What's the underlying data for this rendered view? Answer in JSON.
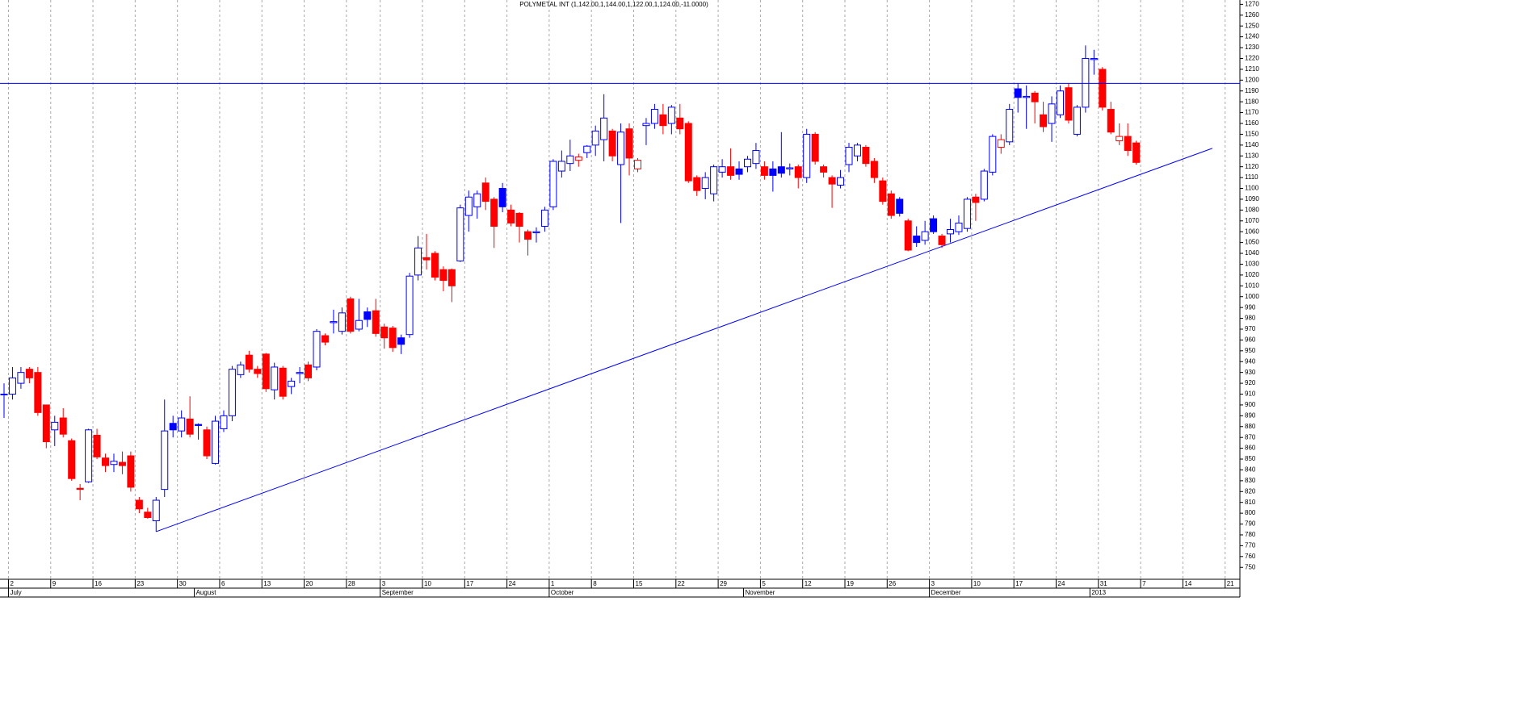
{
  "chart_data": {
    "type": "candlestick",
    "title": "POLYMETAL INT (1,142.00,1,144.00,1,122.00,1,124.00,-11.0000)",
    "categories": [
      null,
      "2",
      null,
      null,
      null,
      null,
      "9",
      null,
      null,
      null,
      null,
      "16",
      null,
      null,
      null,
      null,
      "23",
      null,
      null,
      null,
      null,
      "30",
      null,
      null,
      null,
      null,
      "6",
      null,
      null,
      null,
      null,
      "13",
      null,
      null,
      null,
      null,
      "20",
      null,
      null,
      null,
      null,
      "28",
      null,
      null,
      null,
      "3",
      null,
      null,
      null,
      null,
      "10",
      null,
      null,
      null,
      null,
      "17",
      null,
      null,
      null,
      null,
      "24",
      null,
      null,
      null,
      null,
      "1",
      null,
      null,
      null,
      null,
      "8",
      null,
      null,
      null,
      null,
      "15",
      null,
      null,
      null,
      null,
      "22",
      null,
      null,
      null,
      null,
      "29",
      null,
      null,
      null,
      null,
      "5",
      null,
      null,
      null,
      null,
      "12",
      null,
      null,
      null,
      null,
      "19",
      null,
      null,
      null,
      null,
      "26",
      null,
      null,
      null,
      null,
      "3",
      null,
      null,
      null,
      null,
      "10",
      null,
      null,
      null,
      null,
      "17",
      null,
      null,
      null,
      null,
      "24",
      null,
      null,
      null,
      null,
      "31",
      null,
      null,
      null,
      null,
      "7",
      null,
      null,
      null,
      null,
      "14",
      null,
      null,
      null,
      null,
      "21",
      null
    ],
    "months": [
      null,
      "July",
      null,
      null,
      null,
      null,
      null,
      null,
      null,
      null,
      null,
      null,
      null,
      null,
      null,
      null,
      null,
      null,
      null,
      null,
      null,
      null,
      null,
      "August",
      null,
      null,
      null,
      null,
      null,
      null,
      null,
      null,
      null,
      null,
      null,
      null,
      null,
      null,
      null,
      null,
      null,
      null,
      null,
      null,
      null,
      "September",
      null,
      null,
      null,
      null,
      null,
      null,
      null,
      null,
      null,
      null,
      null,
      null,
      null,
      null,
      null,
      null,
      null,
      null,
      null,
      "October",
      null,
      null,
      null,
      null,
      null,
      null,
      null,
      null,
      null,
      null,
      null,
      null,
      null,
      null,
      null,
      null,
      null,
      null,
      null,
      null,
      null,
      null,
      "November",
      null,
      null,
      null,
      null,
      null,
      null,
      null,
      null,
      null,
      null,
      null,
      null,
      null,
      null,
      null,
      null,
      null,
      null,
      null,
      null,
      null,
      "December",
      null,
      null,
      null,
      null,
      null,
      null,
      null,
      null,
      null,
      null,
      null,
      null,
      null,
      null,
      null,
      null,
      null,
      null,
      "2013",
      null,
      null,
      null,
      null,
      null,
      null,
      null,
      null,
      null,
      null,
      null,
      null,
      null,
      null,
      null,
      null,
      null
    ],
    "open": [
      910,
      910,
      920,
      933,
      930,
      900,
      877,
      888,
      867,
      823,
      829,
      872,
      851,
      845,
      847,
      853,
      812,
      801,
      793,
      822,
      883,
      876,
      887,
      882,
      877,
      846,
      878,
      890,
      928,
      946,
      933,
      947,
      914,
      934,
      917,
      929,
      937,
      935,
      964,
      976,
      968,
      998,
      970,
      986,
      987,
      972,
      971,
      962,
      965,
      1020,
      1036,
      1040,
      1025,
      1025,
      1033,
      1075,
      1083,
      1105,
      1090,
      1100,
      1080,
      1077,
      1060,
      1059,
      1065,
      1083,
      1116,
      1123,
      1126,
      1133,
      1140,
      1145,
      1153,
      1122,
      1155,
      1118,
      1158,
      1160,
      1168,
      1160,
      1165,
      1160,
      1110,
      1100,
      1095,
      1115,
      1120,
      1118,
      1120,
      1123,
      1120,
      1118,
      1120,
      1118,
      1120,
      1110,
      1150,
      1120,
      1110,
      1103,
      1122,
      1130,
      1138,
      1125,
      1107,
      1095,
      1090,
      1070,
      1056,
      1052,
      1072,
      1056,
      1058,
      1060,
      1063,
      1092,
      1090,
      1115,
      1138,
      1143,
      1192,
      1184,
      1188,
      1168,
      1160,
      1168,
      1193,
      1150,
      1175,
      1219,
      1210,
      1173,
      1144,
      1148,
      1142,
      null,
      null,
      null,
      null,
      null,
      null,
      null,
      null,
      null,
      null,
      null,
      null
    ],
    "high": [
      920,
      935,
      935,
      935,
      935,
      900,
      890,
      897,
      869,
      827,
      878,
      878,
      855,
      855,
      857,
      857,
      815,
      805,
      815,
      905,
      890,
      895,
      908,
      883,
      880,
      890,
      895,
      936,
      940,
      950,
      936,
      948,
      939,
      936,
      925,
      935,
      940,
      970,
      966,
      988,
      990,
      1000,
      998,
      990,
      998,
      975,
      973,
      965,
      1022,
      1056,
      1058,
      1042,
      1028,
      1026,
      1085,
      1098,
      1098,
      1110,
      1092,
      1105,
      1085,
      1078,
      1062,
      1064,
      1083,
      1127,
      1135,
      1145,
      1132,
      1140,
      1158,
      1187,
      1155,
      1160,
      1160,
      1128,
      1165,
      1178,
      1178,
      1177,
      1178,
      1162,
      1112,
      1115,
      1122,
      1127,
      1137,
      1125,
      1130,
      1142,
      1125,
      1125,
      1152,
      1123,
      1122,
      1155,
      1152,
      1122,
      1112,
      1117,
      1142,
      1142,
      1140,
      1128,
      1110,
      1098,
      1092,
      1072,
      1065,
      1070,
      1075,
      1058,
      1072,
      1075,
      1092,
      1095,
      1118,
      1150,
      1150,
      1178,
      1197,
      1195,
      1190,
      1180,
      1185,
      1195,
      1197,
      1177,
      1232,
      1228,
      1212,
      1180,
      1160,
      1160,
      1144,
      null,
      null,
      null,
      null,
      null,
      null,
      null,
      null,
      null,
      null,
      null,
      null
    ],
    "low": [
      888,
      905,
      915,
      920,
      890,
      860,
      862,
      870,
      830,
      812,
      828,
      850,
      838,
      838,
      836,
      820,
      800,
      795,
      783,
      815,
      870,
      870,
      870,
      868,
      850,
      845,
      875,
      885,
      925,
      930,
      925,
      912,
      905,
      905,
      910,
      920,
      922,
      932,
      955,
      966,
      965,
      966,
      968,
      972,
      963,
      952,
      949,
      947,
      962,
      1015,
      1025,
      1015,
      1005,
      995,
      1032,
      1060,
      1072,
      1080,
      1045,
      1078,
      1065,
      1050,
      1038,
      1050,
      1060,
      1080,
      1110,
      1116,
      1120,
      1128,
      1130,
      1125,
      1125,
      1068,
      1112,
      1115,
      1140,
      1155,
      1150,
      1150,
      1150,
      1105,
      1093,
      1090,
      1088,
      1110,
      1108,
      1108,
      1115,
      1118,
      1108,
      1097,
      1110,
      1112,
      1100,
      1105,
      1122,
      1110,
      1082,
      1100,
      1115,
      1125,
      1120,
      1105,
      1085,
      1072,
      1074,
      1042,
      1046,
      1048,
      1058,
      1045,
      1050,
      1057,
      1060,
      1070,
      1088,
      1112,
      1132,
      1140,
      1170,
      1155,
      1160,
      1152,
      1143,
      1165,
      1160,
      1148,
      1170,
      1205,
      1172,
      1150,
      1140,
      1130,
      1122,
      null,
      null,
      null,
      null,
      null,
      null,
      null,
      null,
      null,
      null,
      null,
      null
    ],
    "close": [
      910,
      925,
      930,
      925,
      893,
      866,
      884,
      873,
      832,
      822,
      877,
      852,
      844,
      848,
      844,
      824,
      804,
      796,
      812,
      876,
      877,
      888,
      873,
      881,
      853,
      885,
      890,
      933,
      937,
      933,
      929,
      915,
      935,
      908,
      922,
      930,
      925,
      968,
      958,
      977,
      985,
      968,
      978,
      979,
      966,
      962,
      953,
      956,
      1019,
      1045,
      1034,
      1018,
      1015,
      1010,
      1082,
      1092,
      1095,
      1088,
      1065,
      1083,
      1068,
      1065,
      1053,
      1060,
      1080,
      1125,
      1125,
      1130,
      1129,
      1139,
      1153,
      1165,
      1130,
      1152,
      1128,
      1126,
      1160,
      1173,
      1158,
      1175,
      1155,
      1107,
      1098,
      1110,
      1120,
      1120,
      1112,
      1113,
      1127,
      1135,
      1112,
      1112,
      1114,
      1119,
      1110,
      1150,
      1125,
      1115,
      1104,
      1110,
      1138,
      1140,
      1123,
      1110,
      1088,
      1075,
      1077,
      1043,
      1050,
      1060,
      1060,
      1048,
      1062,
      1068,
      1090,
      1087,
      1116,
      1148,
      1145,
      1173,
      1184,
      1185,
      1180,
      1157,
      1178,
      1190,
      1163,
      1175,
      1220,
      1220,
      1175,
      1152,
      1148,
      1135,
      1124,
      null,
      null,
      null,
      null,
      null,
      null,
      null,
      null,
      null,
      null,
      null,
      null
    ],
    "up_color": "#0000ff",
    "down_color": "#ff0000",
    "line_color": "#0000ff",
    "hline": 1197,
    "trendline": {
      "x0": 18,
      "y0": 783,
      "x1": 143,
      "y1": 1137
    },
    "ylim": [
      739,
      1274
    ],
    "yticks": [
      750,
      760,
      770,
      780,
      790,
      800,
      810,
      820,
      830,
      840,
      850,
      860,
      870,
      880,
      890,
      900,
      910,
      920,
      930,
      940,
      950,
      960,
      970,
      980,
      990,
      1000,
      1010,
      1020,
      1030,
      1040,
      1050,
      1060,
      1070,
      1080,
      1090,
      1100,
      1110,
      1120,
      1130,
      1140,
      1150,
      1160,
      1170,
      1180,
      1190,
      1200,
      1210,
      1220,
      1230,
      1240,
      1250,
      1260,
      1270
    ],
    "grid": true
  }
}
